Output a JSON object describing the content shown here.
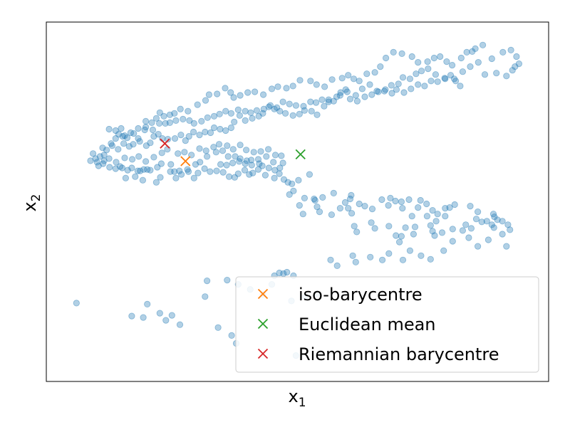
{
  "chart_data": {
    "type": "scatter",
    "xlabel": "x",
    "xlabel_sub": "1",
    "ylabel": "x",
    "ylabel_sub": "2",
    "xlim": [
      0,
      100
    ],
    "ylim": [
      0,
      100
    ],
    "ticks": "none",
    "grid": false,
    "legend_position": "lower-right",
    "colors": {
      "points": "#1f77b4",
      "iso": "#ff7f0e",
      "euclid": "#2ca02c",
      "riem": "#d62728"
    },
    "points": [
      [
        6,
        21.8
      ],
      [
        17,
        18.2
      ],
      [
        19.3,
        17.8
      ],
      [
        20.1,
        21.5
      ],
      [
        22.6,
        19
      ],
      [
        23.8,
        17
      ],
      [
        25,
        18.4
      ],
      [
        26.6,
        15.8
      ],
      [
        32,
        28
      ],
      [
        31.6,
        23.6
      ],
      [
        34.2,
        15
      ],
      [
        36,
        28.2
      ],
      [
        38.2,
        27
      ],
      [
        36.9,
        12.8
      ],
      [
        37.8,
        10.6
      ],
      [
        40.6,
        25.6
      ],
      [
        43.1,
        24.2
      ],
      [
        44.9,
        27
      ],
      [
        45.4,
        29.4
      ],
      [
        46.4,
        30.2
      ],
      [
        47.2,
        30
      ],
      [
        47.9,
        30.4
      ],
      [
        49.2,
        29.4
      ],
      [
        49.7,
        7.2
      ],
      [
        48.8,
        22.4
      ],
      [
        51.6,
        23.6
      ],
      [
        53.9,
        24.4
      ],
      [
        56.6,
        33.8
      ],
      [
        57.9,
        32.2
      ],
      [
        61,
        35
      ],
      [
        61.6,
        33.2
      ],
      [
        64.5,
        34.6
      ],
      [
        66.9,
        33.8
      ],
      [
        68.2,
        35.6
      ],
      [
        71,
        33.8
      ],
      [
        72.4,
        36.4
      ],
      [
        74.6,
        35
      ],
      [
        76.5,
        34
      ],
      [
        79.1,
        36.4
      ],
      [
        80.9,
        39
      ],
      [
        84.1,
        40
      ],
      [
        85.9,
        37.6
      ],
      [
        88,
        39.4
      ],
      [
        90.8,
        41
      ],
      [
        91.6,
        37.6
      ],
      [
        92.3,
        42.2
      ],
      [
        91.9,
        43.6
      ],
      [
        90.8,
        44.6
      ],
      [
        89.2,
        45.8
      ],
      [
        88.7,
        43.6
      ],
      [
        86.7,
        44.4
      ],
      [
        85.6,
        45.2
      ],
      [
        84.6,
        42.6
      ],
      [
        83.5,
        43.6
      ],
      [
        82.9,
        42
      ],
      [
        80.9,
        42.4
      ],
      [
        79.4,
        46
      ],
      [
        78.8,
        41.4
      ],
      [
        77.6,
        44.6
      ],
      [
        76.5,
        43.4
      ],
      [
        76.9,
        41.8
      ],
      [
        77.3,
        40.6
      ],
      [
        75.8,
        46
      ],
      [
        73.4,
        43
      ],
      [
        73.1,
        41
      ],
      [
        72.8,
        46
      ],
      [
        71.5,
        42.8
      ],
      [
        70.7,
        40.4
      ],
      [
        70.3,
        38.8
      ],
      [
        69.6,
        40.6
      ],
      [
        68.2,
        43.2
      ],
      [
        65.4,
        42.6
      ],
      [
        64.7,
        44.2
      ],
      [
        61.8,
        41.6
      ],
      [
        61.3,
        43.2
      ],
      [
        60.8,
        46.8
      ],
      [
        60.1,
        48.2
      ],
      [
        60.5,
        50.8
      ],
      [
        58.5,
        48.2
      ],
      [
        56.8,
        46.4
      ],
      [
        55,
        51.2
      ],
      [
        53.5,
        50.4
      ],
      [
        51.4,
        51
      ],
      [
        50.4,
        49
      ],
      [
        48.4,
        52
      ],
      [
        49.2,
        53
      ],
      [
        48.9,
        55
      ],
      [
        50.2,
        56
      ],
      [
        52.4,
        57.6
      ],
      [
        53.3,
        50.8
      ],
      [
        53.9,
        48.6
      ],
      [
        54.4,
        47.2
      ],
      [
        51.1,
        46.6
      ],
      [
        57.2,
        52.4
      ],
      [
        59.5,
        49.8
      ],
      [
        60.7,
        51.8
      ],
      [
        62.3,
        49.4
      ],
      [
        63.4,
        48.8
      ],
      [
        64.9,
        48
      ],
      [
        66.8,
        50.6
      ],
      [
        68.1,
        49
      ],
      [
        68.5,
        51
      ],
      [
        69.5,
        50.2
      ],
      [
        70.9,
        48.2
      ],
      [
        70.7,
        50
      ],
      [
        72.2,
        50.6
      ],
      [
        74,
        48.4
      ],
      [
        74.5,
        50.4
      ],
      [
        75.7,
        49.4
      ],
      [
        76.9,
        47.6
      ],
      [
        77.9,
        46.6
      ],
      [
        79.4,
        48.2
      ],
      [
        81.3,
        49.2
      ],
      [
        80.3,
        48.4
      ],
      [
        84.4,
        48.8
      ],
      [
        85.9,
        47.2
      ],
      [
        87.7,
        44.6
      ],
      [
        89,
        46.6
      ],
      [
        89.8,
        45
      ],
      [
        89.1,
        42.8
      ],
      [
        12.5,
        70.2
      ],
      [
        13.8,
        69.8
      ],
      [
        14.9,
        70.4
      ],
      [
        15.2,
        68.2
      ],
      [
        16.1,
        67.8
      ],
      [
        17.4,
        69
      ],
      [
        18.3,
        67.6
      ],
      [
        19.6,
        70
      ],
      [
        21,
        72
      ],
      [
        19.8,
        72.4
      ],
      [
        21.9,
        73.2
      ],
      [
        23.4,
        73.8
      ],
      [
        22.6,
        74.8
      ],
      [
        24.6,
        74.2
      ],
      [
        25.5,
        74.6
      ],
      [
        26.7,
        75.8
      ],
      [
        28.2,
        75.2
      ],
      [
        30.1,
        77
      ],
      [
        31.7,
        78.2
      ],
      [
        32.4,
        79.8
      ],
      [
        34,
        80
      ],
      [
        35.6,
        81.6
      ],
      [
        36.7,
        80.4
      ],
      [
        37.3,
        79
      ],
      [
        38.6,
        79.6
      ],
      [
        40.1,
        80.4
      ],
      [
        41.5,
        80.6
      ],
      [
        43.2,
        79.8
      ],
      [
        44.9,
        81.4
      ],
      [
        46.1,
        82
      ],
      [
        47.8,
        81.6
      ],
      [
        49.1,
        82.2
      ],
      [
        50.5,
        83.8
      ],
      [
        52.6,
        83.6
      ],
      [
        53.8,
        82.6
      ],
      [
        55.4,
        82
      ],
      [
        56.9,
        84
      ],
      [
        58.9,
        84.4
      ],
      [
        60.1,
        85.2
      ],
      [
        61.2,
        84.2
      ],
      [
        62.3,
        83.6
      ],
      [
        63.8,
        85.6
      ],
      [
        65.4,
        86
      ],
      [
        66.5,
        87.6
      ],
      [
        67.6,
        90
      ],
      [
        69.1,
        91.6
      ],
      [
        70.8,
        91.2
      ],
      [
        72.8,
        90.4
      ],
      [
        74,
        88.8
      ],
      [
        75.9,
        89
      ],
      [
        77.2,
        90
      ],
      [
        78.4,
        90.4
      ],
      [
        79.7,
        89
      ],
      [
        80.8,
        88
      ],
      [
        82.6,
        90
      ],
      [
        83.7,
        91.6
      ],
      [
        84.8,
        91.8
      ],
      [
        85.4,
        92.6
      ],
      [
        86.9,
        93.6
      ],
      [
        88.7,
        89.8
      ],
      [
        90.9,
        91.6
      ],
      [
        92.5,
        92.2
      ],
      [
        93.6,
        90.4
      ],
      [
        94.1,
        88.4
      ],
      [
        93.3,
        87.6
      ],
      [
        92.8,
        86.6
      ],
      [
        91.6,
        85
      ],
      [
        89.6,
        85.8
      ],
      [
        87.3,
        85.4
      ],
      [
        86,
        88.8
      ],
      [
        84.4,
        87.6
      ],
      [
        82.9,
        86.2
      ],
      [
        81.2,
        84.2
      ],
      [
        79.4,
        84.2
      ],
      [
        77.5,
        85.4
      ],
      [
        76,
        87
      ],
      [
        74.7,
        86.4
      ],
      [
        73.6,
        85.6
      ],
      [
        72.4,
        84.2
      ],
      [
        71,
        84.6
      ],
      [
        70.1,
        82.8
      ],
      [
        68.7,
        82.4
      ],
      [
        67.3,
        80.8
      ],
      [
        65.8,
        80.8
      ],
      [
        64.4,
        82.6
      ],
      [
        62.9,
        81.4
      ],
      [
        61.6,
        79.6
      ],
      [
        59.9,
        80.6
      ],
      [
        58.5,
        79.6
      ],
      [
        57.2,
        78
      ],
      [
        56.2,
        77.8
      ],
      [
        55.3,
        76.6
      ],
      [
        53.9,
        74.2
      ],
      [
        52.8,
        75.2
      ],
      [
        51.4,
        75.4
      ],
      [
        50.4,
        74.4
      ],
      [
        49.1,
        74
      ],
      [
        47.6,
        74.6
      ],
      [
        46.5,
        75.2
      ],
      [
        45.4,
        75.8
      ],
      [
        44.3,
        76.4
      ],
      [
        43.1,
        74.6
      ],
      [
        42.3,
        73.8
      ],
      [
        41,
        73.2
      ],
      [
        39.6,
        72.6
      ],
      [
        38.5,
        74
      ],
      [
        37.4,
        72.2
      ],
      [
        36.8,
        70.6
      ],
      [
        35.7,
        69.8
      ],
      [
        34.6,
        70.2
      ],
      [
        33.4,
        70.6
      ],
      [
        32.7,
        69.2
      ],
      [
        31.6,
        69.4
      ],
      [
        30.5,
        68.6
      ],
      [
        29.3,
        69.4
      ],
      [
        28.4,
        68.2
      ],
      [
        27.7,
        67
      ],
      [
        26.8,
        68.6
      ],
      [
        25.6,
        67.6
      ],
      [
        24.2,
        67.4
      ],
      [
        23.1,
        67.6
      ],
      [
        22.3,
        68.8
      ],
      [
        21.4,
        68.2
      ],
      [
        20.7,
        66.4
      ],
      [
        19.9,
        65.6
      ],
      [
        18.6,
        66.8
      ],
      [
        17.3,
        66
      ],
      [
        16.5,
        65.4
      ],
      [
        15.4,
        66.2
      ],
      [
        14.3,
        64.6
      ],
      [
        13.1,
        65.6
      ],
      [
        12,
        64.4
      ],
      [
        11.5,
        63
      ],
      [
        10.7,
        62.6
      ],
      [
        9.8,
        62
      ],
      [
        10.4,
        60
      ],
      [
        11.3,
        60.6
      ],
      [
        12.6,
        59.6
      ],
      [
        13.8,
        59.2
      ],
      [
        15.1,
        59.4
      ],
      [
        16.2,
        58.8
      ],
      [
        17,
        59.4
      ],
      [
        18.2,
        58.6
      ],
      [
        19.4,
        59
      ],
      [
        20.7,
        58.8
      ],
      [
        22.1,
        59.6
      ],
      [
        22.9,
        60.6
      ],
      [
        24.8,
        60.4
      ],
      [
        25.5,
        58.4
      ],
      [
        26.5,
        58.6
      ],
      [
        28.1,
        59
      ],
      [
        29.7,
        60.4
      ],
      [
        30.6,
        61
      ],
      [
        32,
        62.6
      ],
      [
        33.8,
        63.8
      ],
      [
        35.1,
        64.2
      ],
      [
        36.2,
        62.6
      ],
      [
        37.6,
        62.6
      ],
      [
        38.6,
        62
      ],
      [
        39.9,
        61.4
      ],
      [
        40.8,
        61.6
      ],
      [
        42.2,
        61.8
      ],
      [
        43,
        60
      ],
      [
        44.3,
        59.4
      ],
      [
        45.5,
        58.8
      ],
      [
        46.4,
        57.8
      ],
      [
        47.3,
        56.2
      ],
      [
        48.1,
        55.4
      ],
      [
        45.4,
        56.6
      ],
      [
        43.6,
        57.4
      ],
      [
        42.2,
        59
      ],
      [
        41.1,
        58
      ],
      [
        40.4,
        57.6
      ],
      [
        39.5,
        58.8
      ],
      [
        38.2,
        57.8
      ],
      [
        37.5,
        56.8
      ],
      [
        36.4,
        57
      ],
      [
        35.2,
        58.2
      ],
      [
        33.9,
        58.6
      ],
      [
        32.6,
        58.4
      ],
      [
        31.5,
        59.2
      ],
      [
        30.2,
        58
      ],
      [
        29.4,
        56.6
      ],
      [
        28.3,
        58.4
      ],
      [
        26.9,
        57.6
      ],
      [
        25.8,
        56.6
      ],
      [
        24.7,
        58.4
      ],
      [
        22.7,
        56.8
      ],
      [
        21.9,
        55.4
      ],
      [
        20.1,
        59
      ],
      [
        19.2,
        56
      ],
      [
        18.7,
        58.6
      ],
      [
        17.7,
        57
      ],
      [
        15.8,
        56.6
      ],
      [
        14.7,
        59.8
      ],
      [
        13.9,
        61
      ],
      [
        12.5,
        62
      ],
      [
        11.5,
        61.4
      ],
      [
        10.1,
        61
      ],
      [
        8.8,
        61.4
      ],
      [
        9.3,
        63.4
      ],
      [
        11.2,
        65
      ],
      [
        12.9,
        66.2
      ],
      [
        13.8,
        67.6
      ],
      [
        14.4,
        68.8
      ],
      [
        15.6,
        68.4
      ],
      [
        16.8,
        69.2
      ],
      [
        18.3,
        70.4
      ],
      [
        19.8,
        70.8
      ],
      [
        21.2,
        70
      ],
      [
        22.5,
        71.8
      ],
      [
        23.7,
        71.8
      ],
      [
        24.6,
        72
      ],
      [
        25.8,
        72.6
      ],
      [
        27.2,
        73
      ],
      [
        28.5,
        72.6
      ],
      [
        29.4,
        71.8
      ],
      [
        30.9,
        72.4
      ],
      [
        32.1,
        73.4
      ],
      [
        33.4,
        73.8
      ],
      [
        34.5,
        74.4
      ],
      [
        35.7,
        75.2
      ],
      [
        36.8,
        74.6
      ],
      [
        38.2,
        75.6
      ],
      [
        39.6,
        75.2
      ],
      [
        40.7,
        74.8
      ],
      [
        41.9,
        75.4
      ],
      [
        43.3,
        75.8
      ],
      [
        44.6,
        76.8
      ],
      [
        45.9,
        76.2
      ],
      [
        47.1,
        77.8
      ],
      [
        48.4,
        77.2
      ],
      [
        49.7,
        76.8
      ],
      [
        51.2,
        76.6
      ],
      [
        52.6,
        77.8
      ],
      [
        53.7,
        77.6
      ],
      [
        54.9,
        78.4
      ],
      [
        56.2,
        78.4
      ],
      [
        57.8,
        79.2
      ],
      [
        58.6,
        80.4
      ],
      [
        59.6,
        81.2
      ],
      [
        60.5,
        78.6
      ],
      [
        61.9,
        78
      ],
      [
        63.4,
        79.2
      ],
      [
        64.8,
        79.8
      ],
      [
        66.1,
        80.6
      ],
      [
        67.5,
        81.2
      ],
      [
        68.8,
        80.2
      ],
      [
        69.7,
        81.2
      ],
      [
        71.2,
        80.4
      ],
      [
        72.6,
        81.4
      ],
      [
        74,
        82.6
      ],
      [
        75.3,
        82.2
      ],
      [
        76.6,
        83.6
      ],
      [
        77.9,
        83.4
      ],
      [
        79.3,
        84.4
      ],
      [
        80.5,
        85.2
      ],
      [
        81.5,
        83.6
      ],
      [
        82.4,
        82.2
      ],
      [
        15.6,
        62.2
      ],
      [
        17.1,
        61.8
      ],
      [
        18.4,
        62.6
      ],
      [
        19.8,
        61.2
      ],
      [
        21.4,
        62.4
      ],
      [
        23,
        63.6
      ],
      [
        24.1,
        64.6
      ],
      [
        26.2,
        63.4
      ],
      [
        27.5,
        63.8
      ],
      [
        28.9,
        63
      ],
      [
        30.5,
        64.8
      ],
      [
        31.8,
        64.2
      ],
      [
        33.3,
        65.2
      ],
      [
        34.4,
        66
      ],
      [
        36,
        65.6
      ],
      [
        37.2,
        64.6
      ],
      [
        38.6,
        65.8
      ],
      [
        39.8,
        64.4
      ],
      [
        41.3,
        63.8
      ],
      [
        42.7,
        64
      ],
      [
        44.2,
        64.6
      ],
      [
        45.6,
        63
      ],
      [
        46.8,
        62.8
      ],
      [
        47.1,
        60.8
      ],
      [
        46.5,
        59.4
      ],
      [
        45.2,
        61
      ],
      [
        43.8,
        62.6
      ],
      [
        42.4,
        60.6
      ],
      [
        40.9,
        60.2
      ],
      [
        39.6,
        60.6
      ],
      [
        38.4,
        61.2
      ],
      [
        37.1,
        60.8
      ],
      [
        35.9,
        60.2
      ],
      [
        34.7,
        60.4
      ]
    ],
    "markers": [
      {
        "key": "iso",
        "label": "iso-barycentre",
        "x": 27.7,
        "y": 61.3
      },
      {
        "key": "euclid",
        "label": "Euclidean mean",
        "x": 50.6,
        "y": 63.2
      },
      {
        "key": "riem",
        "label": "Riemannian barycentre",
        "x": 23.6,
        "y": 66.2
      }
    ]
  }
}
